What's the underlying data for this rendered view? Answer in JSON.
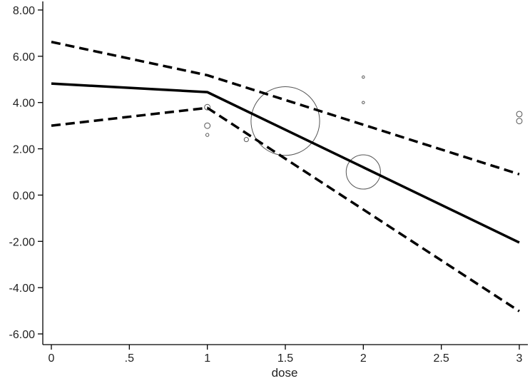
{
  "chart_data": {
    "type": "line",
    "title": "",
    "xlabel": "dose",
    "ylabel": "",
    "x_ticks": [
      "0",
      ".5",
      "1",
      "1.5",
      "2",
      "2.5",
      "3"
    ],
    "x_tick_values": [
      0,
      0.5,
      1,
      1.5,
      2,
      2.5,
      3
    ],
    "y_ticks": [
      "8.00",
      "6.00",
      "4.00",
      "2.00",
      "0.00",
      "-2.00",
      "-4.00",
      "-6.00"
    ],
    "y_tick_values": [
      8,
      6,
      4,
      2,
      0,
      -2,
      -4,
      -6
    ],
    "xlim": [
      0,
      3
    ],
    "ylim": [
      -6,
      8
    ],
    "grid": false,
    "legend": "none",
    "series": [
      {
        "style": "solid",
        "x": [
          0,
          1,
          3
        ],
        "y": [
          4.82,
          4.45,
          -2.05
        ]
      },
      {
        "style": "dashed",
        "x": [
          0,
          1,
          3
        ],
        "y": [
          6.62,
          5.18,
          0.9
        ]
      },
      {
        "style": "dashed",
        "x": [
          0,
          1,
          3
        ],
        "y": [
          3.0,
          3.77,
          -5.02
        ]
      }
    ],
    "bubbles": [
      {
        "x": 1.5,
        "y": 3.2,
        "r": 2.2
      },
      {
        "x": 2.0,
        "y": 1.0,
        "r": 1.1
      },
      {
        "x": 1.0,
        "y": 3.8,
        "r": 0.18
      },
      {
        "x": 1.0,
        "y": 3.0,
        "r": 0.18
      },
      {
        "x": 1.0,
        "y": 2.6,
        "r": 0.1
      },
      {
        "x": 1.25,
        "y": 2.4,
        "r": 0.14
      },
      {
        "x": 2.0,
        "y": 5.1,
        "r": 0.08
      },
      {
        "x": 2.0,
        "y": 4.0,
        "r": 0.08
      },
      {
        "x": 3.0,
        "y": 3.5,
        "r": 0.18
      },
      {
        "x": 3.0,
        "y": 3.2,
        "r": 0.18
      }
    ],
    "colors": {
      "line": "#000000",
      "marker": "#555555",
      "axis": "#000000"
    }
  }
}
